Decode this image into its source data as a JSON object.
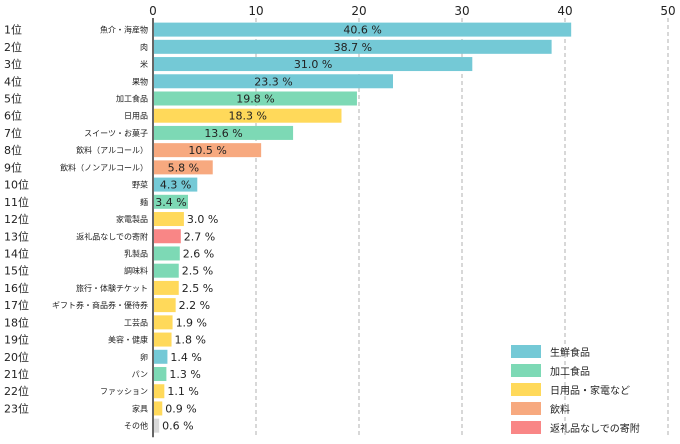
{
  "chart_data": {
    "type": "bar",
    "orientation": "horizontal",
    "title": "",
    "xlabel": "",
    "ylabel": "",
    "xlim": [
      0,
      50
    ],
    "x_ticks": [
      0,
      10,
      20,
      30,
      40,
      50
    ],
    "grid": "vertical dashed",
    "legend_position": "bottom-right",
    "value_suffix": " %",
    "categories": [
      {
        "rank": "1位",
        "label": "魚介・海産物",
        "value": 40.6,
        "group": "fresh",
        "label_inside": true
      },
      {
        "rank": "2位",
        "label": "肉",
        "value": 38.7,
        "group": "fresh",
        "label_inside": true
      },
      {
        "rank": "3位",
        "label": "米",
        "value": 31.0,
        "group": "fresh",
        "label_inside": true
      },
      {
        "rank": "4位",
        "label": "果物",
        "value": 23.3,
        "group": "fresh",
        "label_inside": true
      },
      {
        "rank": "5位",
        "label": "加工食品",
        "value": 19.8,
        "group": "processed",
        "label_inside": true
      },
      {
        "rank": "6位",
        "label": "日用品",
        "value": 18.3,
        "group": "daily",
        "label_inside": true
      },
      {
        "rank": "7位",
        "label": "スイーツ・お菓子",
        "value": 13.6,
        "group": "processed",
        "label_inside": true
      },
      {
        "rank": "8位",
        "label": "飲料（アルコール）",
        "value": 10.5,
        "group": "drink",
        "label_inside": true
      },
      {
        "rank": "9位",
        "label": "飲料（ノンアルコール）",
        "value": 5.8,
        "group": "drink",
        "label_inside": true
      },
      {
        "rank": "10位",
        "label": "野菜",
        "value": 4.3,
        "group": "fresh",
        "label_inside": true
      },
      {
        "rank": "11位",
        "label": "麺",
        "value": 3.4,
        "group": "processed",
        "label_inside": true
      },
      {
        "rank": "12位",
        "label": "家電製品",
        "value": 3.0,
        "group": "daily",
        "label_inside": false
      },
      {
        "rank": "13位",
        "label": "返礼品なしでの寄附",
        "value": 2.7,
        "group": "donation",
        "label_inside": false
      },
      {
        "rank": "14位",
        "label": "乳製品",
        "value": 2.6,
        "group": "processed",
        "label_inside": false
      },
      {
        "rank": "15位",
        "label": "調味料",
        "value": 2.5,
        "group": "processed",
        "label_inside": false
      },
      {
        "rank": "16位",
        "label": "旅行・体験チケット",
        "value": 2.5,
        "group": "daily",
        "label_inside": false
      },
      {
        "rank": "17位",
        "label": "ギフト券・商品券・優待券",
        "value": 2.2,
        "group": "daily",
        "label_inside": false
      },
      {
        "rank": "18位",
        "label": "工芸品",
        "value": 1.9,
        "group": "daily",
        "label_inside": false
      },
      {
        "rank": "19位",
        "label": "美容・健康",
        "value": 1.8,
        "group": "daily",
        "label_inside": false
      },
      {
        "rank": "20位",
        "label": "卵",
        "value": 1.4,
        "group": "fresh",
        "label_inside": false
      },
      {
        "rank": "21位",
        "label": "パン",
        "value": 1.3,
        "group": "processed",
        "label_inside": false
      },
      {
        "rank": "22位",
        "label": "ファッション",
        "value": 1.1,
        "group": "daily",
        "label_inside": false
      },
      {
        "rank": "23位",
        "label": "家具",
        "value": 0.9,
        "group": "daily",
        "label_inside": false
      },
      {
        "rank": "",
        "label": "その他",
        "value": 0.6,
        "group": "other",
        "label_inside": false
      }
    ],
    "legend": [
      {
        "key": "fresh",
        "label": "生鮮食品"
      },
      {
        "key": "processed",
        "label": "加工食品"
      },
      {
        "key": "daily",
        "label": "日用品・家電など"
      },
      {
        "key": "drink",
        "label": "飲料"
      },
      {
        "key": "donation",
        "label": "返礼品なしでの寄附"
      }
    ],
    "colors": {
      "fresh": "#74c9d6",
      "processed": "#7dd9b5",
      "daily": "#ffd95a",
      "drink": "#f7a97f",
      "donation": "#f98686",
      "other": "#d9d9d9",
      "grid": "#b0b0b0",
      "axis": "#333333",
      "text": "#222222"
    }
  }
}
